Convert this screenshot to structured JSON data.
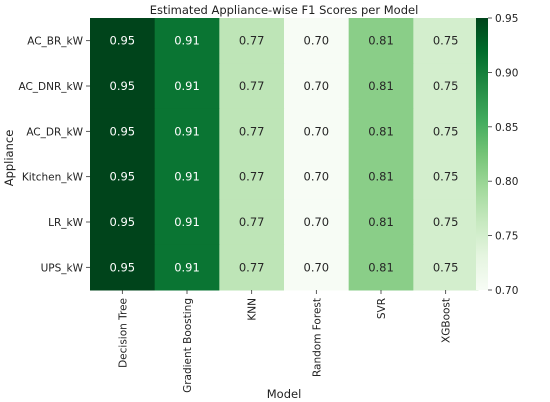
{
  "chart_data": {
    "type": "heatmap",
    "title": "Estimated Appliance-wise F1 Scores per Model",
    "xlabel": "Model",
    "ylabel": "Appliance",
    "columns": [
      "Decision Tree",
      "Gradient Boosting",
      "KNN",
      "Random Forest",
      "SVR",
      "XGBoost"
    ],
    "rows": [
      "AC_BR_kW",
      "AC_DNR_kW",
      "AC_DR_kW",
      "Kitchen_kW",
      "LR_kW",
      "UPS_kW"
    ],
    "values": [
      [
        0.95,
        0.91,
        0.77,
        0.7,
        0.81,
        0.75
      ],
      [
        0.95,
        0.91,
        0.77,
        0.7,
        0.81,
        0.75
      ],
      [
        0.95,
        0.91,
        0.77,
        0.7,
        0.81,
        0.75
      ],
      [
        0.95,
        0.91,
        0.77,
        0.7,
        0.81,
        0.75
      ],
      [
        0.95,
        0.91,
        0.77,
        0.7,
        0.81,
        0.75
      ],
      [
        0.95,
        0.91,
        0.77,
        0.7,
        0.81,
        0.75
      ]
    ],
    "value_format": "0.00",
    "colormap": "Greens",
    "colorbar": {
      "range": [
        0.7,
        0.95
      ],
      "ticks": [
        0.7,
        0.75,
        0.8,
        0.85,
        0.9,
        0.95
      ],
      "tick_labels": [
        "0.70",
        "0.75",
        "0.80",
        "0.85",
        "0.90",
        "0.95"
      ],
      "placement": "right"
    }
  }
}
